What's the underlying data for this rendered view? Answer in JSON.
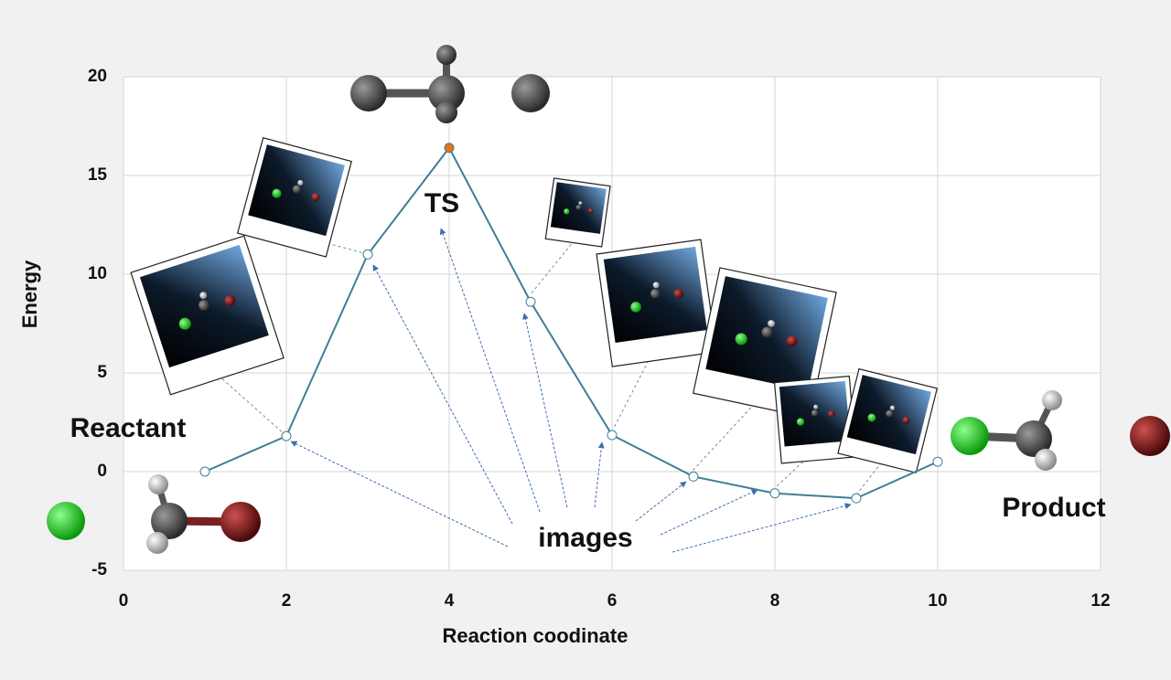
{
  "chart_data": {
    "type": "line",
    "x": [
      1,
      2,
      3,
      4,
      5,
      6,
      7,
      8,
      9,
      10
    ],
    "series": [
      {
        "color": "#3f7f95",
        "values": [
          0,
          1.8,
          11.0,
          16.4,
          8.6,
          1.85,
          -0.25,
          -1.1,
          -1.35,
          0.5
        ],
        "point_colors": [
          "#ffffff",
          "#ffffff",
          "#ffffff",
          "#e3731b",
          "#ffffff",
          "#ffffff",
          "#ffffff",
          "#ffffff",
          "#ffffff",
          "#ffffff"
        ]
      }
    ],
    "xlabel": "Reaction coodinate",
    "ylabel": "Energy",
    "xlim": [
      0,
      12
    ],
    "xticks": [
      0,
      2,
      4,
      6,
      8,
      10,
      12
    ],
    "ylim": [
      -5,
      20
    ],
    "yticks": [
      -5,
      0,
      5,
      10,
      15,
      20
    ],
    "grid": true,
    "annotations": [
      "Reactant",
      "TS",
      "images",
      "Product"
    ]
  }
}
